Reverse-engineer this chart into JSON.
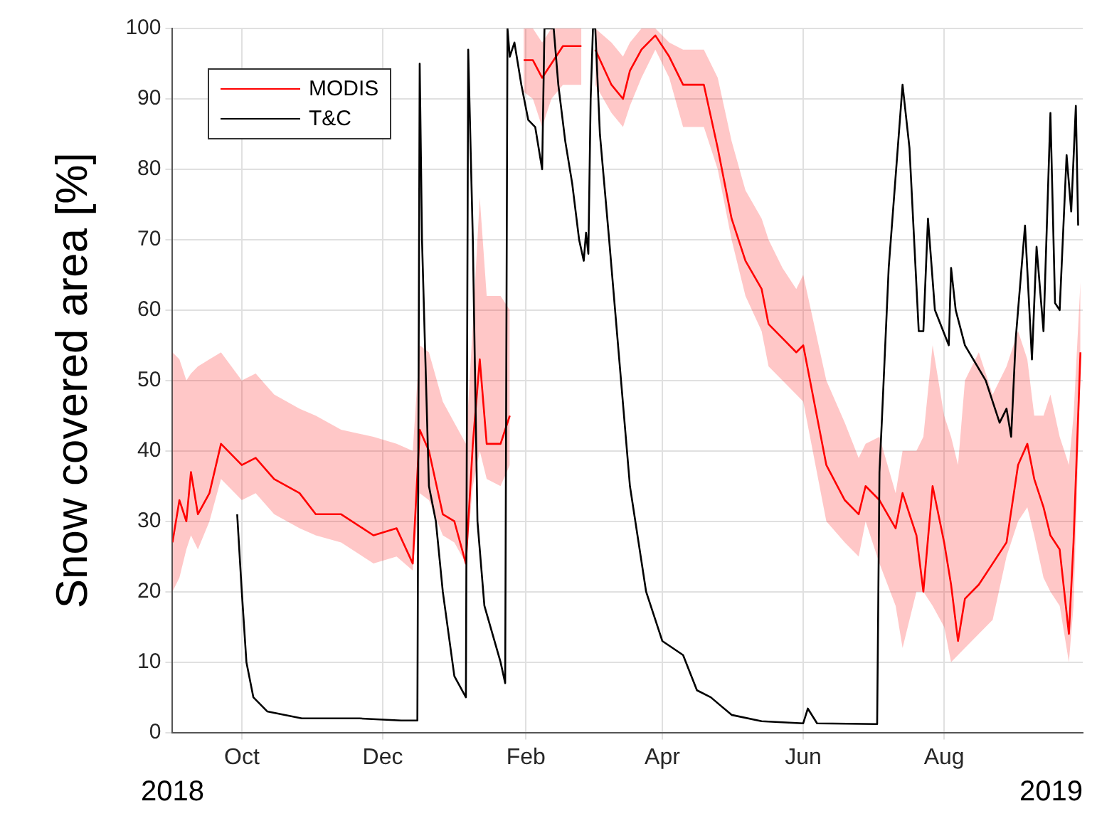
{
  "chart_data": {
    "type": "line",
    "ylabel": "Snow covered area [%]",
    "xlim": [
      "2018-09-01",
      "2019-09-30"
    ],
    "xticks": [
      {
        "value": "2018-10-01",
        "label": "Oct"
      },
      {
        "value": "2018-12-01",
        "label": "Dec"
      },
      {
        "value": "2019-02-01",
        "label": "Feb"
      },
      {
        "value": "2019-04-01",
        "label": "Apr"
      },
      {
        "value": "2019-06-01",
        "label": "Jun"
      },
      {
        "value": "2019-08-01",
        "label": "Aug"
      }
    ],
    "ylim": [
      0,
      100
    ],
    "yticks": [
      0,
      10,
      20,
      30,
      40,
      50,
      60,
      70,
      80,
      90,
      100
    ],
    "grid": true,
    "legend": "top left",
    "marker": "none",
    "line_style": "solid",
    "annotations": [
      "2018",
      "2019"
    ],
    "series": [
      {
        "name": "MODIS",
        "color": "#ff0000",
        "x": [
          "2018-09-01",
          "2018-09-04",
          "2018-09-07",
          "2018-09-09",
          "2018-09-12",
          "2018-09-17",
          "2018-09-22",
          "2018-10-01",
          "2018-10-07",
          "2018-10-15",
          "2018-10-26",
          "2018-11-02",
          "2018-11-13",
          "2018-11-27",
          "2018-12-07",
          "2018-12-14",
          "2018-12-17",
          "2018-12-21",
          "2018-12-27",
          "2019-01-01",
          "2019-01-06",
          "2019-01-09",
          "2019-01-12",
          "2019-01-15",
          "2019-01-21",
          "2019-01-25",
          "2019-01-28",
          "2019-01-31",
          "2019-02-04",
          "2019-02-08",
          "2019-02-12",
          "2019-02-17",
          "2019-02-25",
          "2019-02-28",
          "2019-03-03",
          "2019-03-10",
          "2019-03-15",
          "2019-03-18",
          "2019-03-23",
          "2019-03-29",
          "2019-04-04",
          "2019-04-10",
          "2019-04-19",
          "2019-04-25",
          "2019-05-01",
          "2019-05-07",
          "2019-05-14",
          "2019-05-17",
          "2019-05-23",
          "2019-05-29",
          "2019-06-01",
          "2019-06-11",
          "2019-06-19",
          "2019-06-25",
          "2019-06-28",
          "2019-07-04",
          "2019-07-11",
          "2019-07-14",
          "2019-07-20",
          "2019-07-23",
          "2019-07-27",
          "2019-08-01",
          "2019-08-04",
          "2019-08-07",
          "2019-08-10",
          "2019-08-16",
          "2019-08-22",
          "2019-08-28",
          "2019-09-02",
          "2019-09-06",
          "2019-09-09",
          "2019-09-13",
          "2019-09-16",
          "2019-09-20",
          "2019-09-24",
          "2019-09-26",
          "2019-09-29"
        ],
        "values": [
          27,
          33,
          30,
          37,
          31,
          34,
          41,
          38,
          39,
          36,
          34,
          31,
          31,
          28,
          29,
          24,
          43,
          40,
          31,
          30,
          24,
          41,
          53,
          41,
          41,
          45,
          null,
          95.5,
          95.5,
          93,
          95,
          97.5,
          97.5,
          null,
          97,
          92,
          90,
          94,
          97,
          99,
          96,
          92,
          92,
          83,
          73,
          67,
          63,
          58,
          56,
          54,
          55,
          38,
          33,
          31,
          35,
          33,
          29,
          34,
          28,
          20,
          35,
          27,
          21,
          13,
          19,
          21,
          24,
          27,
          38,
          41,
          36,
          32,
          28,
          26,
          14,
          27,
          54
        ],
        "lower": [
          20,
          22,
          26,
          28,
          26,
          30,
          36,
          33,
          34,
          31,
          29,
          28,
          27,
          24,
          25,
          23,
          34,
          33,
          28,
          27,
          24,
          35,
          40,
          36,
          35,
          38,
          null,
          91,
          90,
          86,
          90,
          92,
          92,
          null,
          92,
          88,
          86,
          89,
          93,
          97,
          93,
          86,
          86,
          80,
          70,
          62,
          57,
          52,
          50,
          48,
          47,
          30,
          27,
          25,
          30,
          24,
          18,
          12,
          20,
          20,
          18,
          15,
          10,
          11,
          12,
          14,
          16,
          25,
          30,
          32,
          28,
          22,
          20,
          18,
          10,
          18,
          50
        ],
        "upper": [
          54,
          53,
          50,
          51,
          52,
          53,
          54,
          50,
          51,
          48,
          46,
          45,
          43,
          42,
          41,
          40,
          55,
          54,
          47,
          44,
          41,
          58,
          76,
          62,
          62,
          60,
          null,
          100,
          100,
          98,
          100,
          100,
          100,
          null,
          100,
          98,
          96,
          98,
          100,
          100,
          98,
          97,
          97,
          93,
          84,
          77,
          73,
          70,
          66,
          63,
          65,
          50,
          44,
          39,
          41,
          42,
          34,
          40,
          40,
          42,
          55,
          45,
          42,
          38,
          50,
          54,
          48,
          52,
          57,
          53,
          45,
          45,
          48,
          42,
          38,
          45,
          64
        ]
      },
      {
        "name": "T&C",
        "color": "#000000",
        "x": [
          "2018-09-29",
          "2018-10-01",
          "2018-10-03",
          "2018-10-06",
          "2018-10-12",
          "2018-10-27",
          "2018-11-21",
          "2018-12-09",
          "2018-12-16",
          "2018-12-17",
          "2018-12-18",
          "2018-12-21",
          "2018-12-24",
          "2018-12-27",
          "2019-01-01",
          "2019-01-06",
          "2019-01-07",
          "2019-01-09",
          "2019-01-11",
          "2019-01-14",
          "2019-01-21",
          "2019-01-23",
          "2019-01-24",
          "2019-01-25",
          "2019-01-27",
          "2019-01-30",
          "2019-02-02",
          "2019-02-05",
          "2019-02-08",
          "2019-02-09",
          "2019-02-13",
          "2019-02-15",
          "2019-02-18",
          "2019-02-21",
          "2019-02-24",
          "2019-02-26",
          "2019-02-27",
          "2019-02-28",
          "2019-03-01",
          "2019-03-02",
          "2019-03-03",
          "2019-03-05",
          "2019-03-09",
          "2019-03-18",
          "2019-03-25",
          "2019-04-01",
          "2019-04-10",
          "2019-04-16",
          "2019-04-22",
          "2019-05-01",
          "2019-05-14",
          "2019-06-01",
          "2019-06-03",
          "2019-06-07",
          "2019-07-03",
          "2019-07-04",
          "2019-07-05",
          "2019-07-08",
          "2019-07-14",
          "2019-07-17",
          "2019-07-21",
          "2019-07-23",
          "2019-07-25",
          "2019-07-28",
          "2019-08-03",
          "2019-08-04",
          "2019-08-06",
          "2019-08-10",
          "2019-08-19",
          "2019-08-25",
          "2019-08-28",
          "2019-08-30",
          "2019-09-01",
          "2019-09-05",
          "2019-09-08",
          "2019-09-10",
          "2019-09-13",
          "2019-09-16",
          "2019-09-18",
          "2019-09-20",
          "2019-09-23",
          "2019-09-25",
          "2019-09-27",
          "2019-09-28"
        ],
        "values": [
          31,
          20,
          10,
          5,
          3,
          2,
          2,
          1.7,
          1.7,
          95,
          70,
          35,
          30,
          20,
          8,
          5,
          97,
          70,
          30,
          18,
          10,
          7,
          100,
          96,
          98,
          92,
          87,
          86,
          80,
          100,
          100,
          92,
          84,
          78,
          70,
          67,
          71,
          68,
          90,
          100,
          100,
          85,
          70,
          35,
          20,
          13,
          11,
          6,
          5,
          2.5,
          1.6,
          1.3,
          3.4,
          1.3,
          1.2,
          37,
          44,
          66,
          92,
          83,
          57,
          57,
          73,
          60,
          55,
          66,
          60,
          55,
          50,
          44,
          46,
          42,
          56,
          72,
          53,
          69,
          57,
          88,
          61,
          60,
          82,
          74,
          89,
          72
        ]
      }
    ]
  }
}
